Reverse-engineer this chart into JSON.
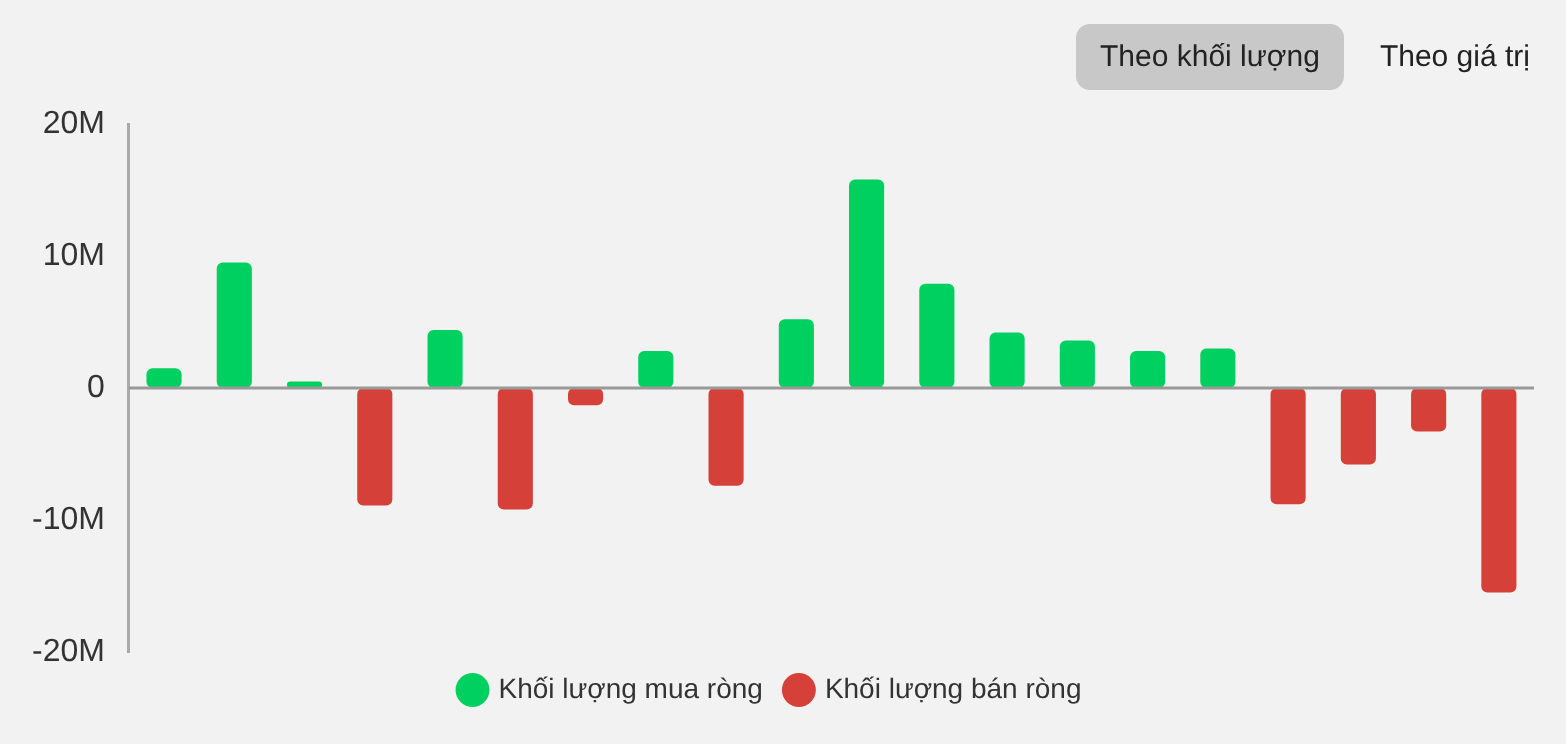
{
  "chart_data": {
    "type": "bar",
    "categories": [
      null,
      null,
      null,
      null,
      null,
      null,
      null,
      null,
      null,
      null,
      null,
      null,
      null,
      null,
      null,
      null,
      null,
      null,
      null,
      null
    ],
    "series": [
      {
        "name": "Khối lượng mua ròng",
        "color": "#00d060",
        "values": [
          1500000,
          9500000,
          500000,
          null,
          4400000,
          null,
          null,
          2800000,
          null,
          5200000,
          15800000,
          7900000,
          4200000,
          3600000,
          2800000,
          3000000,
          null,
          null,
          null,
          null
        ]
      },
      {
        "name": "Khối lượng bán ròng",
        "color": "#d54038",
        "values": [
          null,
          null,
          null,
          -8900000,
          null,
          -9200000,
          -1300000,
          null,
          -7400000,
          null,
          null,
          null,
          null,
          null,
          null,
          null,
          -8800000,
          -5800000,
          -3300000,
          -15500000
        ]
      }
    ],
    "ylim": [
      -20000000,
      20000000
    ],
    "yticks": [
      {
        "value": -20000000,
        "label": "-20M"
      },
      {
        "value": -10000000,
        "label": "-10M"
      },
      {
        "value": 0,
        "label": "0"
      },
      {
        "value": 10000000,
        "label": "10M"
      },
      {
        "value": 20000000,
        "label": "20M"
      }
    ],
    "grid": false,
    "legend": "bottom",
    "marker": "circle",
    "ref_lines": [
      {
        "axis": "y",
        "value": 0,
        "color": "#999999"
      }
    ],
    "annotations": [
      "Theo khối lượng",
      "Theo giá trị"
    ]
  }
}
